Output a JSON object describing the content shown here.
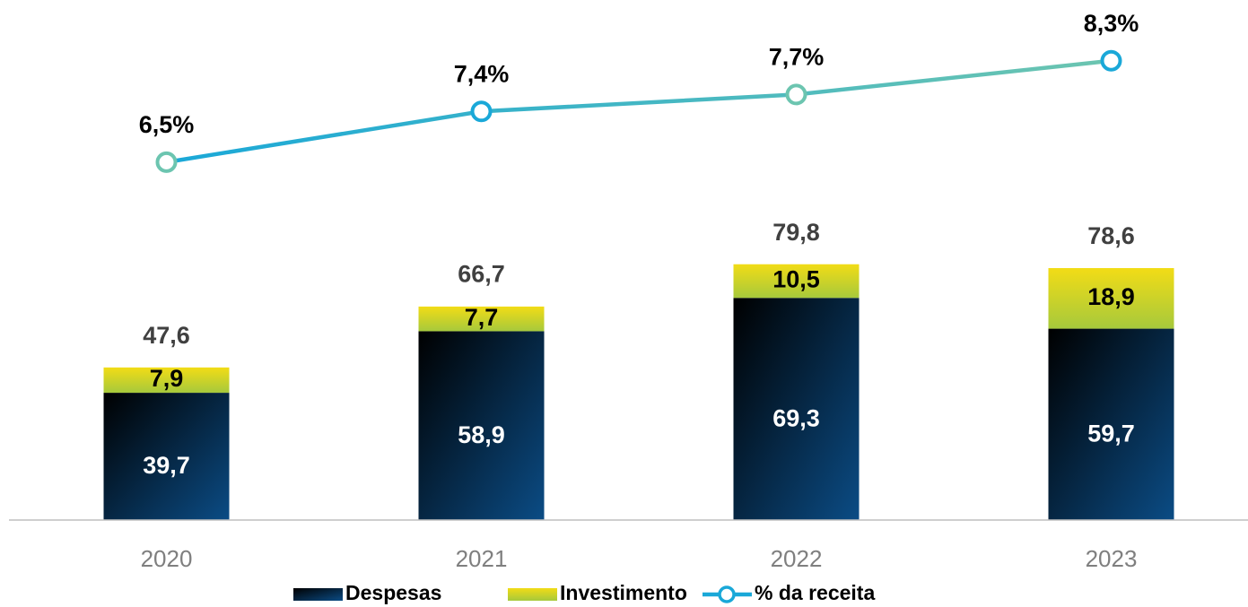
{
  "chart_data": {
    "type": "stacked_bar_line",
    "categories": [
      "2020",
      "2021",
      "2022",
      "2023"
    ],
    "ylim": [
      0,
      160
    ],
    "y2lim": [
      0.15,
      9.25
    ],
    "series": [
      {
        "name": "Despesas",
        "type": "bar",
        "color": "#0b4c85",
        "values": [
          39.7,
          58.9,
          69.3,
          59.7
        ],
        "value_labels": [
          "39,7",
          "58,9",
          "69,3",
          "59,7"
        ]
      },
      {
        "name": "Investimento",
        "type": "bar",
        "color": "#f2dc16",
        "values": [
          7.9,
          7.7,
          10.5,
          18.9
        ],
        "value_labels": [
          "7,9",
          "7,7",
          "10,5",
          "18,9"
        ]
      },
      {
        "name": "% da receita",
        "type": "line",
        "axis": "y2",
        "color": "#1aa8d8",
        "values": [
          6.5,
          7.4,
          7.7,
          8.3
        ],
        "value_labels": [
          "6,5%",
          "7,4%",
          "7,7%",
          "8,3%"
        ]
      }
    ],
    "totals": [
      47.6,
      66.7,
      79.8,
      78.6
    ],
    "total_labels": [
      "47,6",
      "66,7",
      "79,8",
      "78,6"
    ]
  }
}
